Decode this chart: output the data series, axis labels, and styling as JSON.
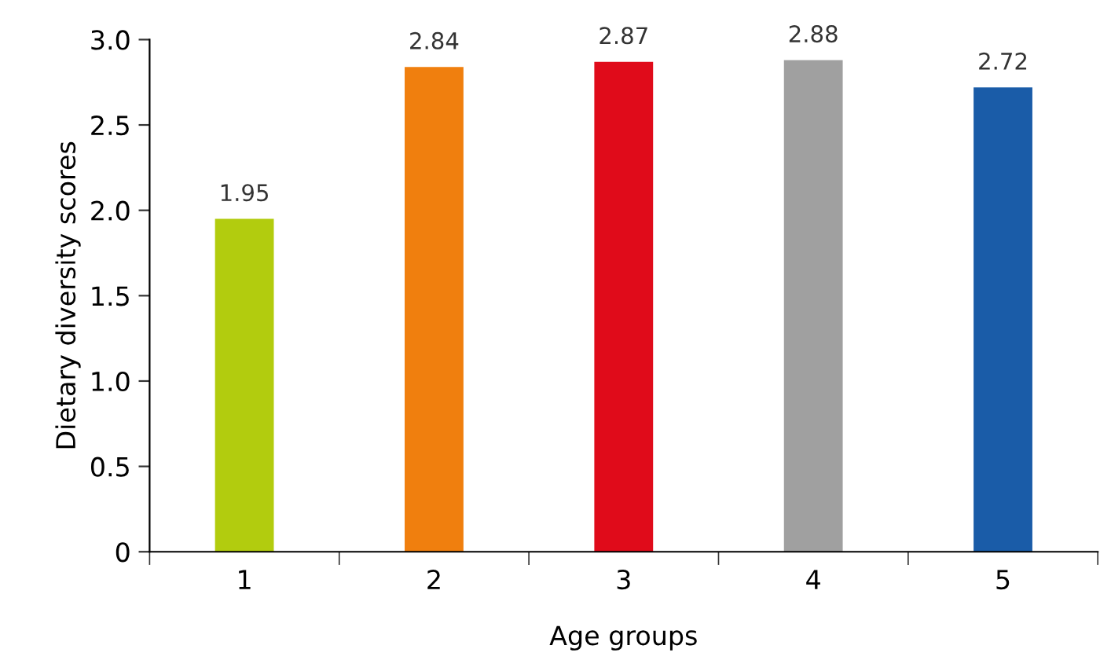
{
  "chart_data": {
    "type": "bar",
    "xlabel": "Age groups",
    "ylabel": "Dietary diversity scores",
    "categories": [
      "1",
      "2",
      "3",
      "4",
      "5"
    ],
    "values": [
      1.95,
      2.84,
      2.87,
      2.88,
      2.72
    ],
    "colors": [
      "#b2cc0e",
      "#f07f0e",
      "#e00b1a",
      "#a0a0a0",
      "#1a5ca8"
    ],
    "ylim": [
      0,
      3
    ],
    "yticks": [
      0,
      0.5,
      {
        "value": 1,
        "label": "1.0"
      },
      1.5,
      {
        "value": 2,
        "label": "2.0"
      },
      2.5,
      {
        "value": 3,
        "label": "3.0"
      }
    ],
    "data_labels": true,
    "grid": false,
    "legend": false
  }
}
